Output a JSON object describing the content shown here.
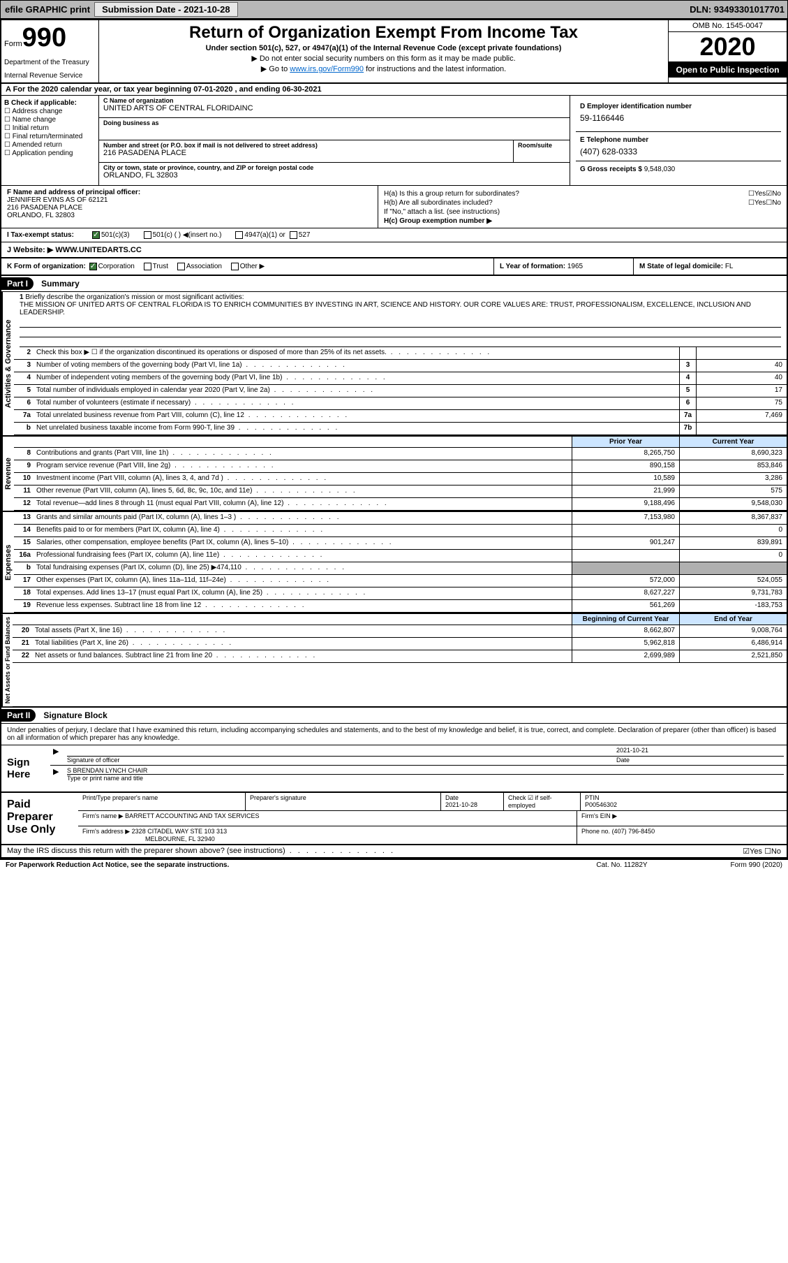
{
  "topbar": {
    "efile_label": "efile GRAPHIC print",
    "submission_label": "Submission Date - 2021-10-28",
    "dln": "DLN: 93493301017701"
  },
  "header": {
    "form_prefix": "Form",
    "form_num": "990",
    "dept": "Department of the Treasury",
    "irs": "Internal Revenue Service",
    "title": "Return of Organization Exempt From Income Tax",
    "subtitle": "Under section 501(c), 527, or 4947(a)(1) of the Internal Revenue Code (except private foundations)",
    "note1": "▶ Do not enter social security numbers on this form as it may be made public.",
    "note2_prefix": "▶ Go to ",
    "note2_link": "www.irs.gov/Form990",
    "note2_suffix": " for instructions and the latest information.",
    "omb": "OMB No. 1545-0047",
    "year": "2020",
    "open_public": "Open to Public Inspection"
  },
  "tax_year": "A For the 2020 calendar year, or tax year beginning 07-01-2020     , and ending 06-30-2021",
  "section_b": {
    "label": "B Check if applicable:",
    "opts": [
      "☐ Address change",
      "☐ Name change",
      "☐ Initial return",
      "☐ Final return/terminated",
      "☐ Amended return",
      "☐ Application pending"
    ]
  },
  "section_c": {
    "name_label": "C Name of organization",
    "name": "UNITED ARTS OF CENTRAL FLORIDAINC",
    "dba_label": "Doing business as",
    "addr_label": "Number and street (or P.O. box if mail is not delivered to street address)",
    "addr": "216 PASADENA PLACE",
    "room_label": "Room/suite",
    "city_label": "City or town, state or province, country, and ZIP or foreign postal code",
    "city": "ORLANDO, FL  32803"
  },
  "section_d": {
    "ein_label": "D Employer identification number",
    "ein": "59-1166446",
    "tel_label": "E Telephone number",
    "tel": "(407) 628-0333",
    "gross_label": "G Gross receipts $",
    "gross": "9,548,030"
  },
  "section_f": {
    "label": "F  Name and address of principal officer:",
    "name": "JENNIFER EVINS AS OF 62121",
    "addr1": "216 PASADENA PLACE",
    "addr2": "ORLANDO, FL  32803"
  },
  "section_h": {
    "ha_label": "H(a)  Is this a group return for subordinates?",
    "ha_yes": "☐Yes",
    "ha_no": "☑No",
    "hb_label": "H(b)  Are all subordinates included?",
    "hb_yes": "☐Yes",
    "hb_no": "☐No",
    "hb_note": "If \"No,\" attach a list. (see instructions)",
    "hc_label": "H(c)  Group exemption number ▶"
  },
  "tax_exempt": {
    "label": "I    Tax-exempt status:",
    "opt1": "501(c)(3)",
    "opt2": "501(c) (  ) ◀(insert no.)",
    "opt3": "4947(a)(1) or",
    "opt4": "527"
  },
  "website": {
    "label": "J   Website: ▶",
    "val": "WWW.UNITEDARTS.CC"
  },
  "k_row": {
    "k_label": "K Form of organization:",
    "corp": "Corporation",
    "trust": "Trust",
    "assoc": "Association",
    "other": "Other ▶",
    "l_label": "L Year of formation:",
    "l_val": "1965",
    "m_label": "M State of legal domicile:",
    "m_val": "FL"
  },
  "part1": {
    "header": "Part I",
    "title": "Summary"
  },
  "mission": {
    "num": "1",
    "label": "Briefly describe the organization's mission or most significant activities:",
    "text": "THE MISSION OF UNITED ARTS OF CENTRAL FLORIDA IS TO ENRICH COMMUNITIES BY INVESTING IN ART, SCIENCE AND HISTORY. OUR CORE VALUES ARE: TRUST, PROFESSIONALISM, EXCELLENCE, INCLUSION AND LEADERSHIP."
  },
  "activities_lines": [
    {
      "n": "2",
      "t": "Check this box ▶ ☐  if the organization discontinued its operations or disposed of more than 25% of its net assets.",
      "box": "",
      "v": ""
    },
    {
      "n": "3",
      "t": "Number of voting members of the governing body (Part VI, line 1a)",
      "box": "3",
      "v": "40"
    },
    {
      "n": "4",
      "t": "Number of independent voting members of the governing body (Part VI, line 1b)",
      "box": "4",
      "v": "40"
    },
    {
      "n": "5",
      "t": "Total number of individuals employed in calendar year 2020 (Part V, line 2a)",
      "box": "5",
      "v": "17"
    },
    {
      "n": "6",
      "t": "Total number of volunteers (estimate if necessary)",
      "box": "6",
      "v": "75"
    },
    {
      "n": "7a",
      "t": "Total unrelated business revenue from Part VIII, column (C), line 12",
      "box": "7a",
      "v": "7,469"
    },
    {
      "n": "b",
      "t": "Net unrelated business taxable income from Form 990-T, line 39",
      "box": "7b",
      "v": ""
    }
  ],
  "col_headers": {
    "prior": "Prior Year",
    "current": "Current Year"
  },
  "revenue_lines": [
    {
      "n": "8",
      "t": "Contributions and grants (Part VIII, line 1h)",
      "p": "8,265,750",
      "c": "8,690,323"
    },
    {
      "n": "9",
      "t": "Program service revenue (Part VIII, line 2g)",
      "p": "890,158",
      "c": "853,846"
    },
    {
      "n": "10",
      "t": "Investment income (Part VIII, column (A), lines 3, 4, and 7d )",
      "p": "10,589",
      "c": "3,286"
    },
    {
      "n": "11",
      "t": "Other revenue (Part VIII, column (A), lines 5, 6d, 8c, 9c, 10c, and 11e)",
      "p": "21,999",
      "c": "575"
    },
    {
      "n": "12",
      "t": "Total revenue—add lines 8 through 11 (must equal Part VIII, column (A), line 12)",
      "p": "9,188,496",
      "c": "9,548,030"
    }
  ],
  "expense_lines": [
    {
      "n": "13",
      "t": "Grants and similar amounts paid (Part IX, column (A), lines 1–3 )",
      "p": "7,153,980",
      "c": "8,367,837"
    },
    {
      "n": "14",
      "t": "Benefits paid to or for members (Part IX, column (A), line 4)",
      "p": "",
      "c": "0"
    },
    {
      "n": "15",
      "t": "Salaries, other compensation, employee benefits (Part IX, column (A), lines 5–10)",
      "p": "901,247",
      "c": "839,891"
    },
    {
      "n": "16a",
      "t": "Professional fundraising fees (Part IX, column (A), line 11e)",
      "p": "",
      "c": "0"
    },
    {
      "n": "b",
      "t": "Total fundraising expenses (Part IX, column (D), line 25) ▶474,110",
      "p": "GRAY",
      "c": "GRAY"
    },
    {
      "n": "17",
      "t": "Other expenses (Part IX, column (A), lines 11a–11d, 11f–24e)",
      "p": "572,000",
      "c": "524,055"
    },
    {
      "n": "18",
      "t": "Total expenses. Add lines 13–17 (must equal Part IX, column (A), line 25)",
      "p": "8,627,227",
      "c": "9,731,783"
    },
    {
      "n": "19",
      "t": "Revenue less expenses. Subtract line 18 from line 12",
      "p": "561,269",
      "c": "-183,753"
    }
  ],
  "net_headers": {
    "begin": "Beginning of Current Year",
    "end": "End of Year"
  },
  "net_lines": [
    {
      "n": "20",
      "t": "Total assets (Part X, line 16)",
      "p": "8,662,807",
      "c": "9,008,764"
    },
    {
      "n": "21",
      "t": "Total liabilities (Part X, line 26)",
      "p": "5,962,818",
      "c": "6,486,914"
    },
    {
      "n": "22",
      "t": "Net assets or fund balances. Subtract line 21 from line 20",
      "p": "2,699,989",
      "c": "2,521,850"
    }
  ],
  "vert_labels": {
    "activities": "Activities & Governance",
    "revenue": "Revenue",
    "expenses": "Expenses",
    "net": "Net Assets or Fund Balances"
  },
  "part2": {
    "header": "Part II",
    "title": "Signature Block"
  },
  "sig_intro": "Under penalties of perjury, I declare that I have examined this return, including accompanying schedules and statements, and to the best of my knowledge and belief, it is true, correct, and complete. Declaration of preparer (other than officer) is based on all information of which preparer has any knowledge.",
  "sign": {
    "label": "Sign Here",
    "sig_label": "Signature of officer",
    "date_label": "Date",
    "date": "2021-10-21",
    "name": "S BRENDAN LYNCH  CHAIR",
    "name_label": "Type or print name and title"
  },
  "prep": {
    "label": "Paid Preparer Use Only",
    "print_label": "Print/Type preparer's name",
    "sig_label": "Preparer's signature",
    "date_label": "Date",
    "date": "2021-10-28",
    "check_label": "Check ☑ if self-employed",
    "ptin_label": "PTIN",
    "ptin": "P00546302",
    "firm_name_label": "Firm's name    ▶",
    "firm_name": "BARRETT ACCOUNTING AND TAX SERVICES",
    "firm_ein_label": "Firm's EIN ▶",
    "firm_addr_label": "Firm's address ▶",
    "firm_addr1": "2328 CITADEL WAY STE 103 313",
    "firm_addr2": "MELBOURNE, FL  32940",
    "phone_label": "Phone no.",
    "phone": "(407) 796-8450"
  },
  "discuss": {
    "text": "May the IRS discuss this return with the preparer shown above? (see instructions)",
    "yes": "☑Yes",
    "no": "☐No"
  },
  "footer": {
    "left": "For Paperwork Reduction Act Notice, see the separate instructions.",
    "mid": "Cat. No. 11282Y",
    "right": "Form 990 (2020)"
  },
  "colors": {
    "topbar_bg": "#b8b8b8",
    "header_blue": "#cce5ff",
    "gray_cell": "#b0b0b0",
    "link": "#0066cc",
    "check_green": "#3a7a3a"
  }
}
